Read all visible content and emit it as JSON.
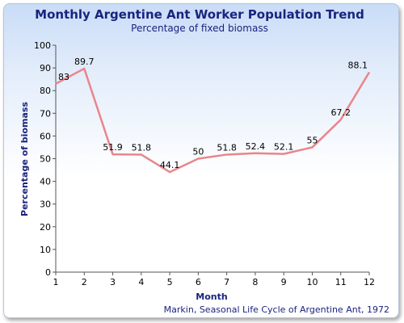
{
  "chart_data": {
    "type": "line",
    "title": "Monthly Argentine Ant Worker Population Trend",
    "subtitle": "Percentage of fixed biomass",
    "xlabel": "Month",
    "ylabel": "Percentage of biomass",
    "x": [
      1,
      2,
      3,
      4,
      5,
      6,
      7,
      8,
      9,
      10,
      11,
      12
    ],
    "values": [
      83,
      89.7,
      51.9,
      51.8,
      44.1,
      50,
      51.8,
      52.4,
      52.1,
      55,
      67.2,
      88.1
    ],
    "data_labels": [
      "83",
      "89.7",
      "51.9",
      "51.8",
      "44.1",
      "50",
      "51.8",
      "52.4",
      "52.1",
      "55",
      "67.2",
      "88.1"
    ],
    "xlim": [
      1,
      12
    ],
    "ylim": [
      0,
      100
    ],
    "yticks": [
      0,
      10,
      20,
      30,
      40,
      50,
      60,
      70,
      80,
      90,
      100
    ],
    "xticks": [
      1,
      2,
      3,
      4,
      5,
      6,
      7,
      8,
      9,
      10,
      11,
      12
    ],
    "grid": false,
    "line_color": "#e8868c",
    "source": "Markin, Seasonal Life Cycle of Argentine Ant, 1972"
  }
}
